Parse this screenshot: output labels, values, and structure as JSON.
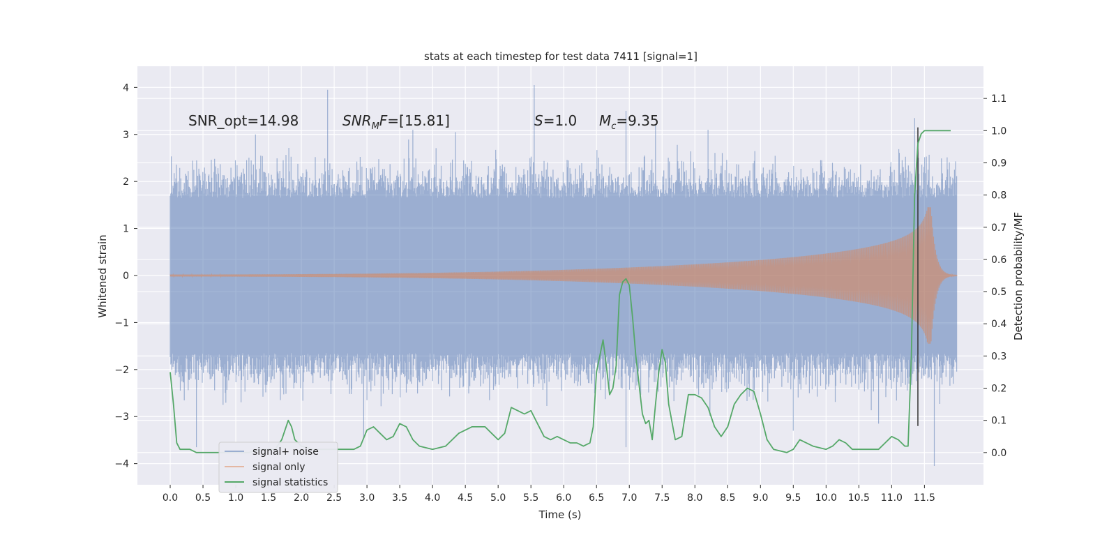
{
  "chart_data": {
    "type": "line",
    "title": "stats at each timestep for test data 7411 [signal=1]",
    "xlabel": "Time (s)",
    "ylabel": "Whitened strain",
    "y2label": "Detection probability/MF",
    "xlim": [
      -0.5,
      12.4
    ],
    "ylim": [
      -4.45,
      4.45
    ],
    "y2lim": [
      -0.1,
      1.2
    ],
    "grid": true,
    "x_ticks": [
      0.0,
      0.5,
      1.0,
      1.5,
      2.0,
      2.5,
      3.0,
      3.5,
      4.0,
      4.5,
      5.0,
      5.5,
      6.0,
      6.5,
      7.0,
      7.5,
      8.0,
      8.5,
      9.0,
      9.5,
      10.0,
      10.5,
      11.0,
      11.5
    ],
    "x_tick_labels": [
      "0.0",
      "0.5",
      "1.0",
      "1.5",
      "2.0",
      "2.5",
      "3.0",
      "3.5",
      "4.0",
      "4.5",
      "5.0",
      "5.5",
      "6.0",
      "6.5",
      "7.0",
      "7.5",
      "8.0",
      "8.5",
      "9.0",
      "9.5",
      "10.0",
      "10.5",
      "11.0",
      "11.5"
    ],
    "y_ticks": [
      -4,
      -3,
      -2,
      -1,
      0,
      1,
      2,
      3,
      4
    ],
    "y_tick_labels": [
      "−4",
      "−3",
      "−2",
      "−1",
      "0",
      "1",
      "2",
      "3",
      "4"
    ],
    "y2_ticks": [
      0.0,
      0.1,
      0.2,
      0.3,
      0.4,
      0.5,
      0.6,
      0.7,
      0.8,
      0.9,
      1.0,
      1.1
    ],
    "y2_tick_labels": [
      "0.0",
      "0.1",
      "0.2",
      "0.3",
      "0.4",
      "0.5",
      "0.6",
      "0.7",
      "0.8",
      "0.9",
      "1.0",
      "1.1"
    ],
    "annotations": {
      "snr_opt": "SNR_opt=14.98",
      "snr_mf_prefix": "SNR",
      "snr_mf_sub": "M",
      "snr_mf_mid": "F",
      "snr_mf_value": "=[15.81]",
      "s_sym": "S",
      "s_value": "=1.0",
      "mc_sym": "M",
      "mc_sub": "c",
      "mc_value": "=9.35"
    },
    "legend": {
      "placement": "lower-left",
      "entries": [
        "signal+ noise",
        "signal only",
        "signal statistics"
      ]
    },
    "series": [
      {
        "name": "signal+ noise",
        "axis": "left",
        "kind": "noise",
        "color": "#4c72b0",
        "duration": 12.0,
        "envelope_typical": 1.85,
        "spikes": [
          [
            0.4,
            -3.65
          ],
          [
            2.4,
            3.95
          ],
          [
            2.95,
            -3.45
          ],
          [
            5.55,
            4.05
          ],
          [
            6.95,
            -3.65
          ],
          [
            6.95,
            3.5
          ],
          [
            11.35,
            3.35
          ],
          [
            11.65,
            -4.05
          ],
          [
            7.4,
            3.2
          ],
          [
            3.7,
            3.1
          ],
          [
            9.5,
            -3.3
          ],
          [
            4.35,
            3.05
          ],
          [
            1.3,
            3.0
          ],
          [
            8.2,
            3.1
          ],
          [
            10.8,
            -3.15
          ]
        ]
      },
      {
        "name": "signal only",
        "axis": "left",
        "kind": "chirp",
        "color": "#dd8452",
        "merger_time": 11.6,
        "duration": 12.0,
        "peak_amplitude": 1.45
      },
      {
        "name": "signal statistics",
        "axis": "right",
        "kind": "line",
        "color": "#55a868",
        "x": [
          0.0,
          0.05,
          0.1,
          0.15,
          0.2,
          0.3,
          0.4,
          0.5,
          0.6,
          0.8,
          1.0,
          1.2,
          1.4,
          1.6,
          1.7,
          1.8,
          1.85,
          1.9,
          1.95,
          2.0,
          2.2,
          2.5,
          2.8,
          2.9,
          3.0,
          3.1,
          3.2,
          3.3,
          3.4,
          3.5,
          3.6,
          3.7,
          3.8,
          4.0,
          4.2,
          4.4,
          4.6,
          4.8,
          4.9,
          5.0,
          5.1,
          5.2,
          5.3,
          5.4,
          5.5,
          5.6,
          5.7,
          5.8,
          5.9,
          6.0,
          6.1,
          6.2,
          6.3,
          6.4,
          6.45,
          6.5,
          6.55,
          6.6,
          6.65,
          6.7,
          6.75,
          6.8,
          6.85,
          6.9,
          6.95,
          7.0,
          7.05,
          7.1,
          7.2,
          7.25,
          7.3,
          7.35,
          7.4,
          7.45,
          7.5,
          7.55,
          7.6,
          7.7,
          7.8,
          7.9,
          8.0,
          8.1,
          8.2,
          8.3,
          8.4,
          8.5,
          8.6,
          8.7,
          8.8,
          8.9,
          9.0,
          9.1,
          9.2,
          9.4,
          9.5,
          9.6,
          9.8,
          10.0,
          10.1,
          10.2,
          10.3,
          10.4,
          10.5,
          10.6,
          10.8,
          10.9,
          11.0,
          11.1,
          11.2,
          11.25,
          11.3,
          11.35,
          11.4,
          11.45,
          11.5,
          11.55,
          11.6,
          11.7,
          11.8,
          11.9
        ],
        "y": [
          0.25,
          0.15,
          0.03,
          0.01,
          0.01,
          0.01,
          0.0,
          0.0,
          0.0,
          0.0,
          0.0,
          0.0,
          0.01,
          0.01,
          0.04,
          0.1,
          0.08,
          0.04,
          0.03,
          0.02,
          0.01,
          0.01,
          0.01,
          0.02,
          0.07,
          0.08,
          0.06,
          0.04,
          0.05,
          0.09,
          0.08,
          0.04,
          0.02,
          0.01,
          0.02,
          0.06,
          0.08,
          0.08,
          0.06,
          0.04,
          0.06,
          0.14,
          0.13,
          0.12,
          0.13,
          0.09,
          0.05,
          0.04,
          0.05,
          0.04,
          0.03,
          0.03,
          0.02,
          0.03,
          0.08,
          0.25,
          0.3,
          0.35,
          0.27,
          0.18,
          0.2,
          0.27,
          0.49,
          0.53,
          0.54,
          0.52,
          0.42,
          0.3,
          0.12,
          0.09,
          0.1,
          0.04,
          0.15,
          0.25,
          0.32,
          0.28,
          0.15,
          0.04,
          0.05,
          0.18,
          0.18,
          0.17,
          0.14,
          0.08,
          0.05,
          0.08,
          0.15,
          0.18,
          0.2,
          0.19,
          0.12,
          0.04,
          0.01,
          0.0,
          0.01,
          0.04,
          0.02,
          0.01,
          0.02,
          0.04,
          0.03,
          0.01,
          0.01,
          0.01,
          0.01,
          0.03,
          0.05,
          0.04,
          0.02,
          0.02,
          0.3,
          0.8,
          0.96,
          0.99,
          1.0,
          1.0,
          1.0,
          1.0,
          1.0,
          1.0
        ]
      }
    ],
    "vertical_marker": {
      "x": 11.4,
      "y_from": -3.2,
      "y_to": 3.15,
      "color": "#333333"
    }
  }
}
